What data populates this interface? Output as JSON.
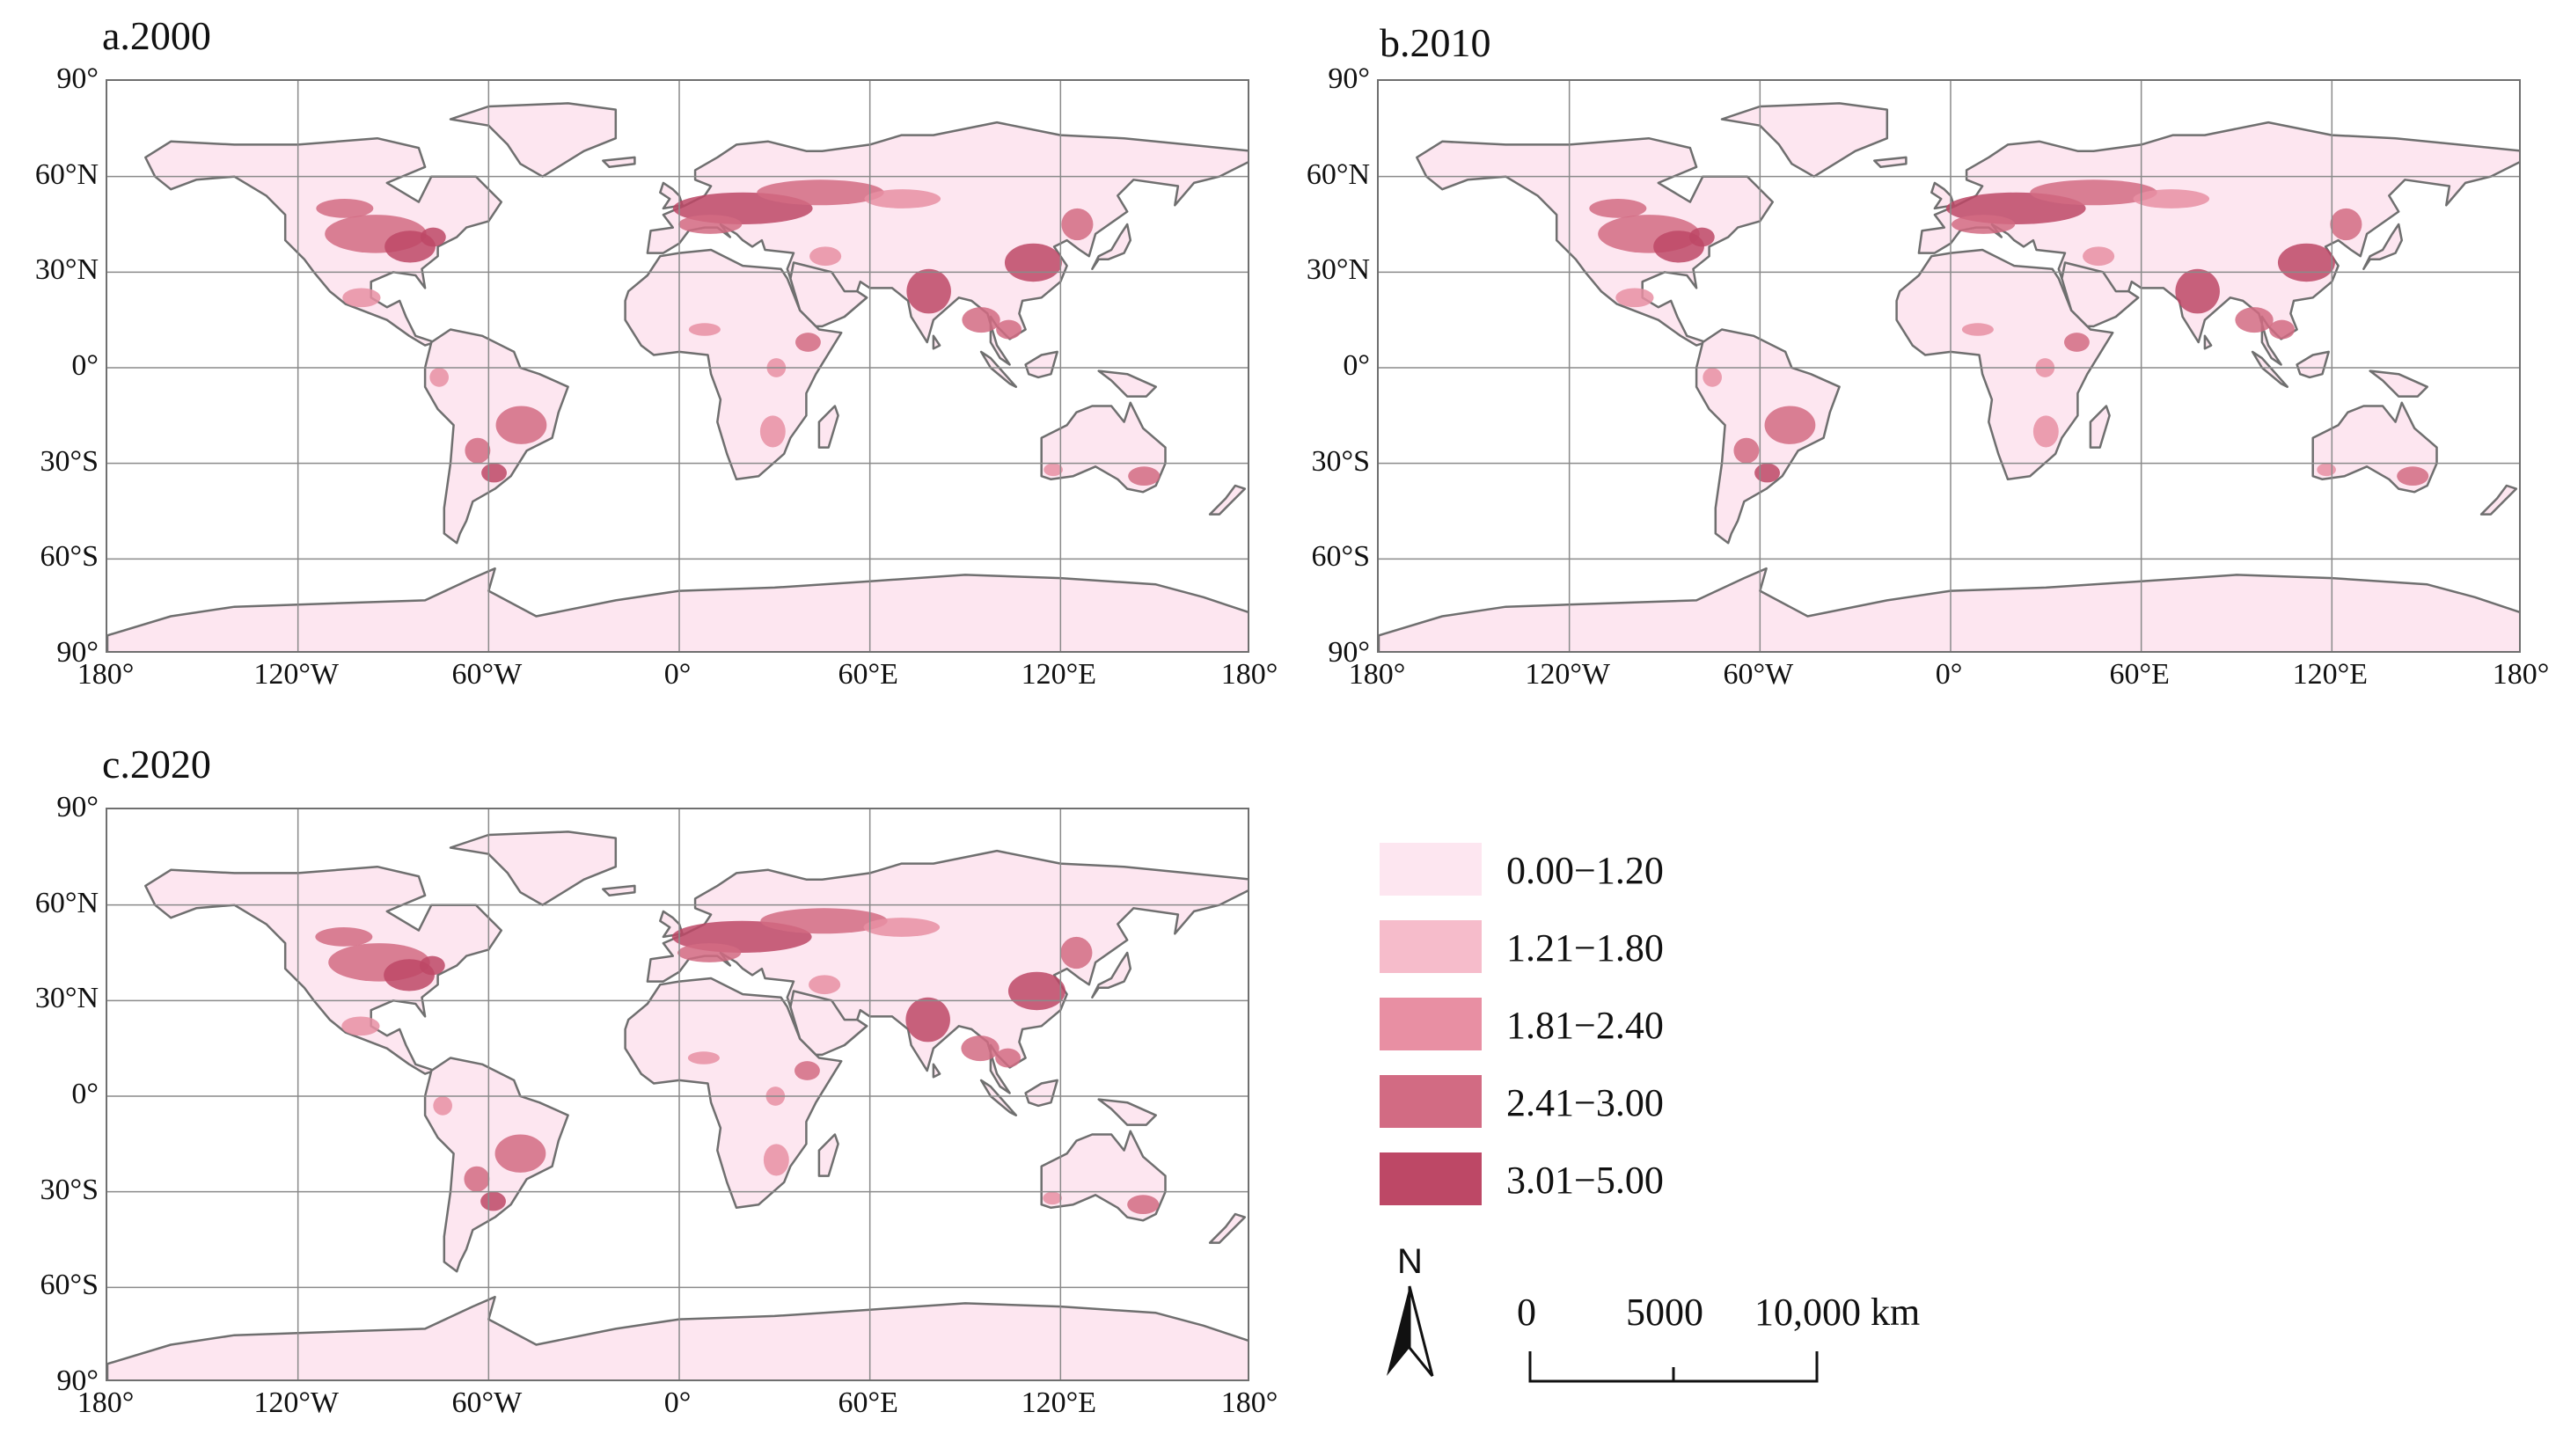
{
  "panels": [
    {
      "title": "a.2000"
    },
    {
      "title": "b.2010"
    },
    {
      "title": "c.2020"
    }
  ],
  "lat_labels": [
    "90°",
    "60°N",
    "30°N",
    "0°",
    "30°S",
    "60°S",
    "90°"
  ],
  "lon_labels": [
    "180°",
    "120°W",
    "60°W",
    "0°",
    "60°E",
    "120°E",
    "180°"
  ],
  "legend": {
    "items": [
      {
        "label": "0.00−1.20",
        "color": "#fde6f0"
      },
      {
        "label": "1.21−1.80",
        "color": "#f6bccb"
      },
      {
        "label": "1.81−2.40",
        "color": "#e88fa3"
      },
      {
        "label": "2.41−3.00",
        "color": "#d26b83"
      },
      {
        "label": "3.01−5.00",
        "color": "#bd4866"
      }
    ]
  },
  "north_arrow": {
    "label": "N"
  },
  "scalebar": {
    "labels": [
      "0",
      "5000",
      "10,000 km"
    ]
  },
  "colors": {
    "land": "#fde6f0",
    "boundary": "#6f6f6f",
    "grid": "#8a8a8a",
    "ocean": "#ffffff"
  }
}
